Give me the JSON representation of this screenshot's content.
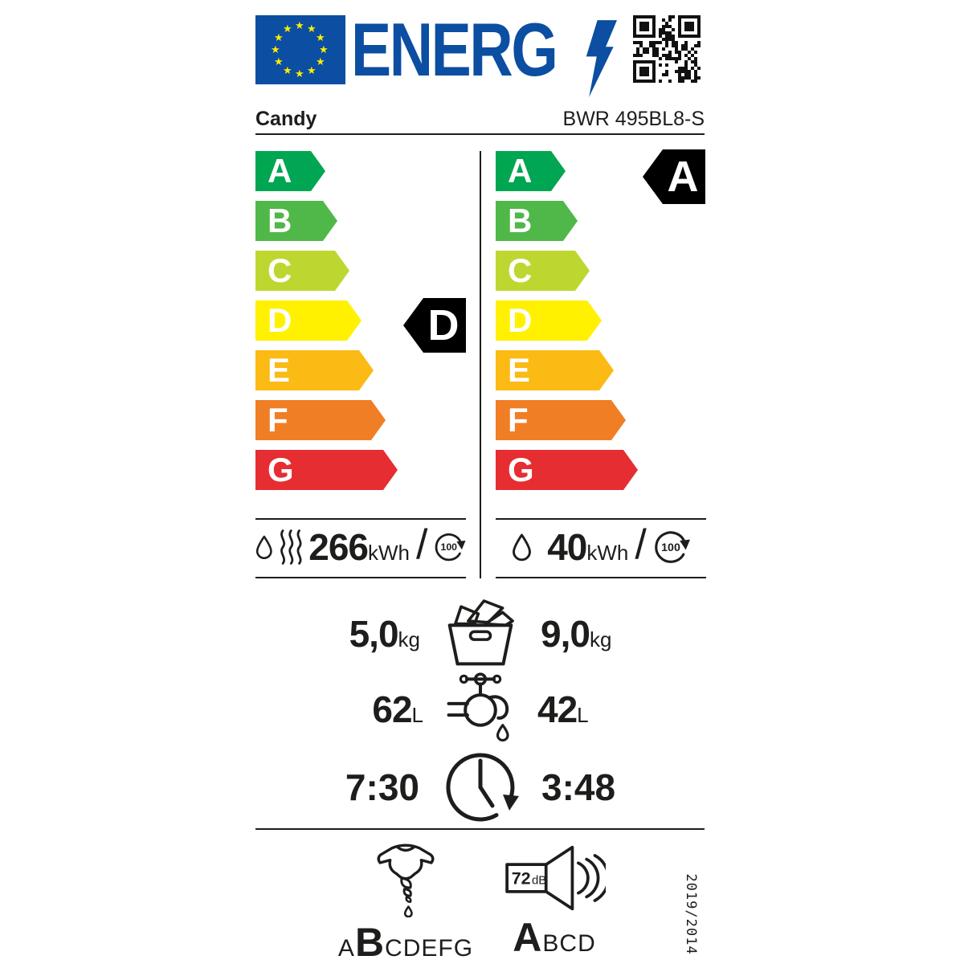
{
  "colors": {
    "label_blue": "#0b4ea2",
    "star_yellow": "#ffed00",
    "ink": "#1d1d1b",
    "ratings": {
      "A": "#00a651",
      "B": "#50b848",
      "C": "#bed730",
      "D": "#fff100",
      "E": "#fbba14",
      "F": "#f07e25",
      "G": "#e62d32"
    }
  },
  "header": {
    "logo_text": "ENERG",
    "brand": "Candy",
    "model": "BWR 495BL8-S"
  },
  "scales": {
    "letters": [
      "A",
      "B",
      "C",
      "D",
      "E",
      "F",
      "G"
    ],
    "left": {
      "indicator": "D"
    },
    "right": {
      "indicator": "A"
    }
  },
  "consumption": {
    "left": {
      "value": "266",
      "unit": "kWh",
      "per_cycles": "100"
    },
    "right": {
      "value": "40",
      "unit": "kWh",
      "per_cycles": "100"
    }
  },
  "capacity": {
    "left_value": "5,0",
    "right_value": "9,0",
    "unit": "kg"
  },
  "water": {
    "left_value": "62",
    "right_value": "42",
    "unit": "L"
  },
  "duration": {
    "left_value": "7:30",
    "right_value": "3:48"
  },
  "spin_class": {
    "letters": [
      "A",
      "B",
      "C",
      "D",
      "E",
      "F",
      "G"
    ],
    "rating": "B"
  },
  "noise": {
    "value": "72",
    "unit": "dB",
    "letters": [
      "A",
      "B",
      "C",
      "D"
    ],
    "rating": "A"
  },
  "regulation": "2019/2014"
}
